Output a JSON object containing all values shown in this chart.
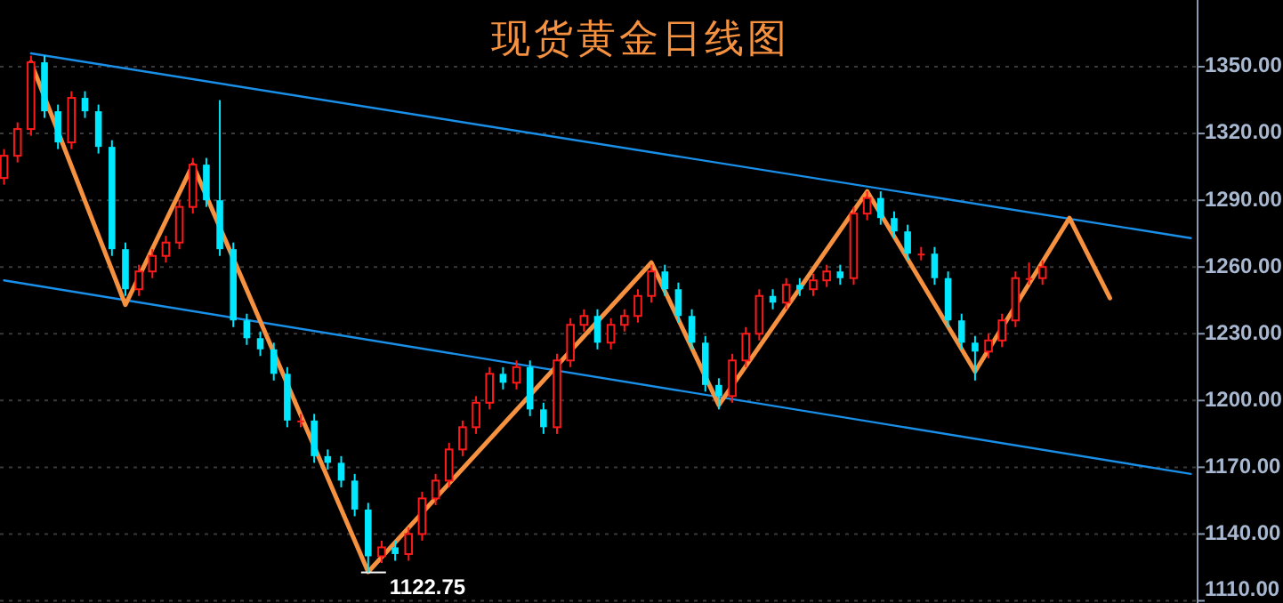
{
  "chart_data": {
    "type": "candlestick",
    "title": "现货黄金日线图",
    "categories": [
      null,
      null,
      null,
      null,
      null,
      null,
      null,
      null,
      null,
      null,
      null,
      null,
      null,
      null,
      null,
      null,
      null,
      null,
      null,
      null,
      null,
      null,
      null,
      null,
      null,
      null,
      null,
      null,
      null,
      null,
      null,
      null,
      null,
      null,
      null,
      null,
      null,
      null,
      null,
      null,
      null,
      null,
      null,
      null,
      null,
      null,
      null,
      null,
      null,
      null,
      null,
      null,
      null,
      null,
      null,
      null,
      null,
      null,
      null,
      null,
      null,
      null,
      null,
      null,
      null,
      null,
      null,
      null,
      null,
      null,
      null,
      null,
      null,
      null,
      null,
      null,
      null,
      null,
      null,
      null,
      null,
      null,
      null,
      null,
      null,
      null,
      null,
      null,
      null
    ],
    "ohlc": [
      [
        1300,
        1313,
        1297,
        1310
      ],
      [
        1310,
        1325,
        1307,
        1322
      ],
      [
        1322,
        1355,
        1319,
        1352
      ],
      [
        1352,
        1355,
        1327,
        1330
      ],
      [
        1330,
        1333,
        1313,
        1316
      ],
      [
        1316,
        1339,
        1313,
        1336
      ],
      [
        1336,
        1339,
        1327,
        1330
      ],
      [
        1330,
        1333,
        1311,
        1314
      ],
      [
        1314,
        1317,
        1265,
        1268
      ],
      [
        1268,
        1271,
        1247,
        1250
      ],
      [
        1250,
        1261,
        1247,
        1258
      ],
      [
        1258,
        1268,
        1255,
        1265
      ],
      [
        1265,
        1274,
        1262,
        1271
      ],
      [
        1271,
        1290,
        1268,
        1287
      ],
      [
        1287,
        1309,
        1284,
        1306
      ],
      [
        1306,
        1309,
        1287,
        1290
      ],
      [
        1290,
        1335,
        1265,
        1268
      ],
      [
        1268,
        1271,
        1233,
        1236
      ],
      [
        1236,
        1239,
        1225,
        1228
      ],
      [
        1228,
        1231,
        1220,
        1223
      ],
      [
        1223,
        1226,
        1209,
        1212
      ],
      [
        1212,
        1215,
        1188,
        1191
      ],
      [
        1191,
        1194,
        1188,
        1191
      ],
      [
        1191,
        1194,
        1172,
        1175
      ],
      [
        1175,
        1178,
        1169,
        1172
      ],
      [
        1172,
        1175,
        1161,
        1164
      ],
      [
        1164,
        1167,
        1148,
        1151
      ],
      [
        1151,
        1154,
        1122.75,
        1130
      ],
      [
        1130,
        1137,
        1127,
        1134
      ],
      [
        1134,
        1137,
        1128,
        1131
      ],
      [
        1131,
        1143,
        1128,
        1140
      ],
      [
        1140,
        1159,
        1137,
        1156
      ],
      [
        1156,
        1167,
        1153,
        1164
      ],
      [
        1164,
        1181,
        1161,
        1178
      ],
      [
        1178,
        1191,
        1175,
        1188
      ],
      [
        1188,
        1202,
        1185,
        1199
      ],
      [
        1199,
        1215,
        1196,
        1212
      ],
      [
        1212,
        1215,
        1205,
        1208
      ],
      [
        1208,
        1218,
        1205,
        1215
      ],
      [
        1215,
        1218,
        1193,
        1196
      ],
      [
        1196,
        1199,
        1185,
        1188
      ],
      [
        1188,
        1221,
        1185,
        1218
      ],
      [
        1218,
        1237,
        1215,
        1234
      ],
      [
        1234,
        1241,
        1231,
        1238
      ],
      [
        1238,
        1241,
        1223,
        1226
      ],
      [
        1226,
        1237,
        1223,
        1234
      ],
      [
        1234,
        1241,
        1231,
        1238
      ],
      [
        1238,
        1250,
        1235,
        1247
      ],
      [
        1247,
        1261,
        1244,
        1258
      ],
      [
        1258,
        1261,
        1247,
        1250
      ],
      [
        1250,
        1253,
        1235,
        1238
      ],
      [
        1238,
        1241,
        1223,
        1226
      ],
      [
        1226,
        1229,
        1204,
        1207
      ],
      [
        1207,
        1210,
        1196,
        1202
      ],
      [
        1202,
        1221,
        1199,
        1218
      ],
      [
        1218,
        1233,
        1215,
        1230
      ],
      [
        1230,
        1250,
        1227,
        1247
      ],
      [
        1247,
        1250,
        1241,
        1244
      ],
      [
        1244,
        1255,
        1241,
        1252
      ],
      [
        1252,
        1255,
        1247,
        1250
      ],
      [
        1250,
        1257,
        1247,
        1254
      ],
      [
        1254,
        1261,
        1251,
        1258
      ],
      [
        1258,
        1261,
        1252,
        1255
      ],
      [
        1255,
        1287,
        1252,
        1284
      ],
      [
        1284,
        1294,
        1281,
        1291
      ],
      [
        1291,
        1294,
        1279,
        1282
      ],
      [
        1282,
        1285,
        1273,
        1276
      ],
      [
        1276,
        1279,
        1263,
        1266
      ],
      [
        1266,
        1269,
        1263,
        1266
      ],
      [
        1266,
        1269,
        1252,
        1255
      ],
      [
        1255,
        1258,
        1233,
        1236
      ],
      [
        1236,
        1239,
        1223,
        1226
      ],
      [
        1226,
        1229,
        1209,
        1222
      ],
      [
        1222,
        1230,
        1219,
        1227
      ],
      [
        1227,
        1239,
        1224,
        1236
      ],
      [
        1236,
        1258,
        1233,
        1255
      ],
      [
        1255,
        1262,
        1252,
        1255
      ],
      [
        1255,
        1263,
        1252,
        1260
      ],
      null,
      null,
      null,
      null,
      null,
      null,
      null,
      null,
      null,
      null,
      null
    ],
    "colors": [
      "#ff1a1a",
      "#ff1a1a",
      "#ff1a1a",
      "#00e8ff",
      "#00e8ff",
      "#ff1a1a",
      "#00e8ff",
      "#00e8ff",
      "#00e8ff",
      "#00e8ff",
      "#ff1a1a",
      "#ff1a1a",
      "#ff1a1a",
      "#ff1a1a",
      "#ff1a1a",
      "#00e8ff",
      "#00e8ff",
      "#00e8ff",
      "#00e8ff",
      "#00e8ff",
      "#00e8ff",
      "#00e8ff",
      "#ff1a1a",
      "#00e8ff",
      "#00e8ff",
      "#00e8ff",
      "#00e8ff",
      "#00e8ff",
      "#ff1a1a",
      "#00e8ff",
      "#ff1a1a",
      "#ff1a1a",
      "#ff1a1a",
      "#ff1a1a",
      "#ff1a1a",
      "#ff1a1a",
      "#ff1a1a",
      "#00e8ff",
      "#ff1a1a",
      "#00e8ff",
      "#00e8ff",
      "#ff1a1a",
      "#ff1a1a",
      "#ff1a1a",
      "#00e8ff",
      "#ff1a1a",
      "#ff1a1a",
      "#ff1a1a",
      "#ff1a1a",
      "#00e8ff",
      "#00e8ff",
      "#00e8ff",
      "#00e8ff",
      "#00e8ff",
      "#ff1a1a",
      "#ff1a1a",
      "#ff1a1a",
      "#00e8ff",
      "#ff1a1a",
      "#00e8ff",
      "#ff1a1a",
      "#ff1a1a",
      "#00e8ff",
      "#ff1a1a",
      "#ff1a1a",
      "#00e8ff",
      "#00e8ff",
      "#00e8ff",
      "#ff1a1a",
      "#00e8ff",
      "#00e8ff",
      "#00e8ff",
      "#00e8ff",
      "#ff1a1a",
      "#ff1a1a",
      "#ff1a1a",
      "#ff1a1a",
      "#ff1a1a",
      null,
      null,
      null,
      null,
      null,
      null,
      null,
      null,
      null,
      null,
      null
    ],
    "series": [
      {
        "type": "line",
        "color": "#1a8fe8",
        "values": [
          null,
          null,
          1356,
          null,
          null,
          null,
          null,
          null,
          null,
          null,
          null,
          null,
          null,
          null,
          null,
          null,
          null,
          null,
          null,
          null,
          null,
          null,
          null,
          null,
          null,
          null,
          null,
          null,
          null,
          null,
          null,
          null,
          null,
          null,
          null,
          null,
          null,
          null,
          null,
          null,
          null,
          null,
          null,
          null,
          null,
          null,
          null,
          null,
          null,
          null,
          null,
          null,
          null,
          null,
          null,
          null,
          null,
          null,
          null,
          null,
          null,
          null,
          null,
          null,
          null,
          null,
          null,
          null,
          null,
          null,
          null,
          null,
          null,
          null,
          null,
          null,
          null,
          null,
          null,
          null,
          null,
          null,
          null,
          null,
          null,
          null,
          null,
          null,
          1273
        ]
      },
      {
        "type": "line",
        "color": "#1a8fe8",
        "values": [
          1254,
          null,
          null,
          null,
          null,
          null,
          null,
          null,
          null,
          null,
          null,
          null,
          null,
          null,
          null,
          null,
          null,
          null,
          null,
          null,
          null,
          null,
          null,
          null,
          null,
          null,
          null,
          null,
          null,
          null,
          null,
          null,
          null,
          null,
          null,
          null,
          null,
          null,
          null,
          null,
          null,
          null,
          null,
          null,
          null,
          null,
          null,
          null,
          null,
          null,
          null,
          null,
          null,
          null,
          null,
          null,
          null,
          null,
          null,
          null,
          null,
          null,
          null,
          null,
          null,
          null,
          null,
          null,
          null,
          null,
          null,
          null,
          null,
          null,
          null,
          null,
          null,
          null,
          null,
          null,
          null,
          null,
          null,
          null,
          null,
          null,
          null,
          null,
          1167
        ]
      },
      {
        "type": "line",
        "color": "#f5913f",
        "values": [
          null,
          null,
          1352,
          null,
          null,
          null,
          null,
          null,
          null,
          1243,
          null,
          null,
          null,
          null,
          1306,
          null,
          null,
          null,
          null,
          null,
          null,
          null,
          null,
          null,
          null,
          null,
          null,
          1123,
          null,
          null,
          null,
          null,
          null,
          null,
          null,
          null,
          null,
          null,
          null,
          null,
          null,
          null,
          null,
          null,
          null,
          null,
          null,
          null,
          1262,
          null,
          null,
          null,
          null,
          1198,
          null,
          null,
          null,
          null,
          null,
          null,
          null,
          null,
          null,
          null,
          1294,
          null,
          null,
          null,
          null,
          null,
          null,
          null,
          1213,
          null,
          null,
          null,
          null,
          null,
          null,
          1282,
          null,
          null,
          1246,
          null,
          null,
          null,
          null,
          null,
          null
        ]
      }
    ],
    "ylim": [
      1109,
      1380
    ],
    "yticks": [
      {
        "value": 1110,
        "label": "1110.00"
      },
      {
        "value": 1140,
        "label": "1140.00"
      },
      {
        "value": 1170,
        "label": "1170.00"
      },
      {
        "value": 1200,
        "label": "1200.00"
      },
      {
        "value": 1230,
        "label": "1230.00"
      },
      {
        "value": 1260,
        "label": "1260.00"
      },
      {
        "value": 1290,
        "label": "1290.00"
      },
      {
        "value": 1320,
        "label": "1320.00"
      },
      {
        "value": 1350,
        "label": "1350.00"
      }
    ],
    "grid": "y",
    "annotations": [
      "1122.75"
    ]
  }
}
